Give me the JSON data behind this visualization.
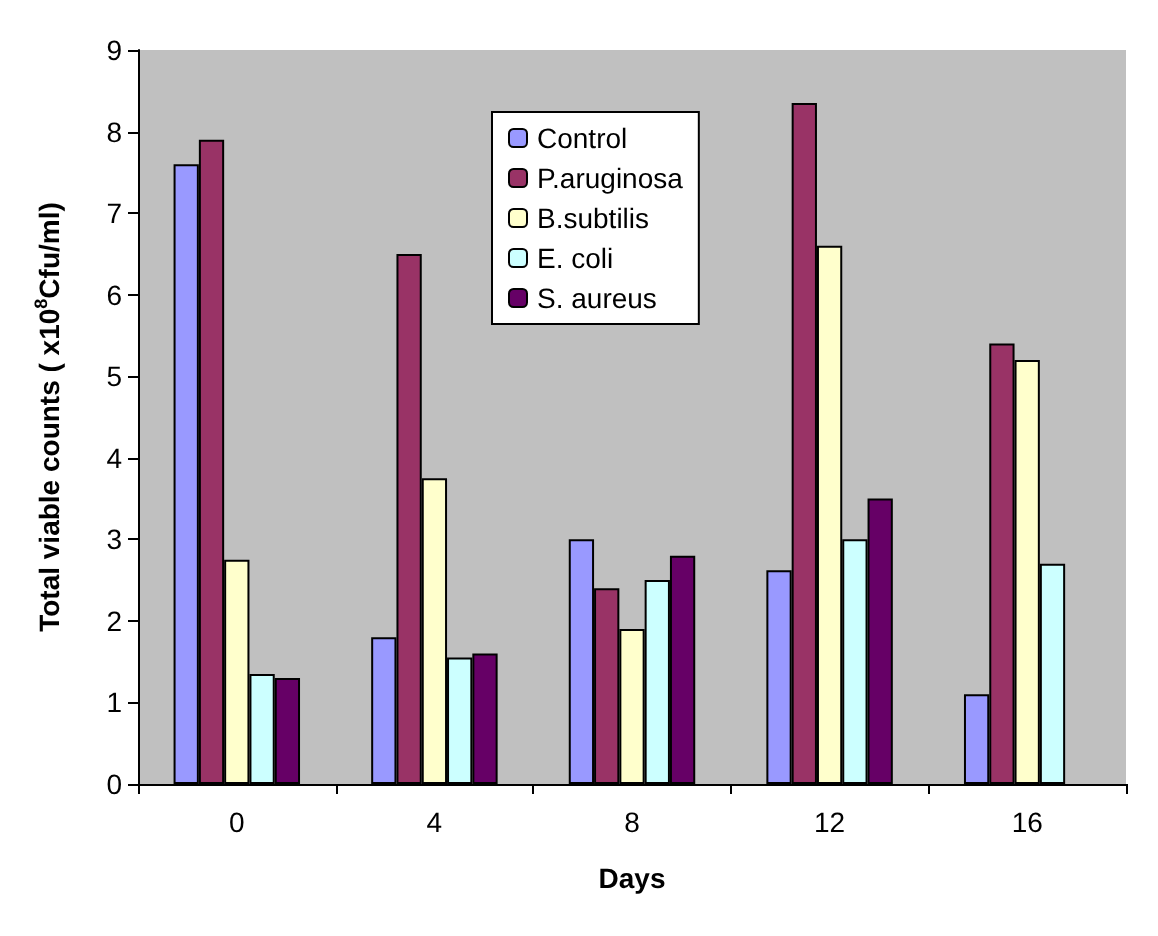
{
  "chart_data": {
    "type": "bar",
    "xlabel": "Days",
    "ylabel": "Total viable counts ( x10$^{8}$Cfu/ml)",
    "categories": [
      "0",
      "4",
      "8",
      "12",
      "16"
    ],
    "series": [
      {
        "name": "Control",
        "color": "#9999ff",
        "values": [
          7.6,
          1.8,
          3.0,
          2.62,
          1.1
        ]
      },
      {
        "name": "P.aruginosa",
        "color": "#993366",
        "values": [
          7.9,
          6.5,
          2.4,
          8.35,
          5.4
        ]
      },
      {
        "name": "B.subtilis",
        "color": "#ffffcc",
        "values": [
          2.75,
          3.75,
          1.9,
          6.6,
          5.2
        ]
      },
      {
        "name": "E. coli",
        "color": "#ccffff",
        "values": [
          1.35,
          1.55,
          2.5,
          3.0,
          2.7
        ]
      },
      {
        "name": "S. aureus",
        "color": "#660066",
        "values": [
          1.3,
          1.6,
          2.8,
          3.5,
          null
        ]
      }
    ],
    "ylim": [
      0,
      9
    ],
    "yticks": [
      0,
      1,
      2,
      3,
      4,
      5,
      6,
      7,
      8,
      9
    ],
    "grid": false,
    "legend": "top center"
  }
}
